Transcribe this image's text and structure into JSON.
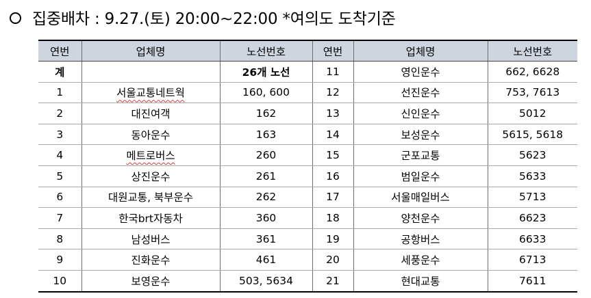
{
  "heading": "집중배차 : 9.27.(토) 20:00~22:00 *여의도 도착기준",
  "table": {
    "headers": [
      "연번",
      "업체명",
      "노선번호",
      "연번",
      "업체명",
      "노선번호"
    ],
    "total_row": {
      "label": "계",
      "company": "",
      "routes": "26개 노선"
    },
    "left": [
      {
        "no": "1",
        "company": "서울교통네트웍",
        "routes": "160, 600"
      },
      {
        "no": "2",
        "company": "대진여객",
        "routes": "162"
      },
      {
        "no": "3",
        "company": "동아운수",
        "routes": "163"
      },
      {
        "no": "4",
        "company": "메트로버스",
        "routes": "260"
      },
      {
        "no": "5",
        "company": "상진운수",
        "routes": "261"
      },
      {
        "no": "6",
        "company": "대원교통, 북부운수",
        "routes": "262"
      },
      {
        "no": "7",
        "company": "한국brt자동차",
        "routes": "360"
      },
      {
        "no": "8",
        "company": "남성버스",
        "routes": "361"
      },
      {
        "no": "9",
        "company": "진화운수",
        "routes": "461"
      },
      {
        "no": "10",
        "company": "보영운수",
        "routes": "503, 5634"
      }
    ],
    "right": [
      {
        "no": "11",
        "company": "영인운수",
        "routes": "662, 6628"
      },
      {
        "no": "12",
        "company": "선진운수",
        "routes": "753, 7613"
      },
      {
        "no": "13",
        "company": "신인운수",
        "routes": "5012"
      },
      {
        "no": "14",
        "company": "보성운수",
        "routes": "5615, 5618"
      },
      {
        "no": "15",
        "company": "군포교통",
        "routes": "5623"
      },
      {
        "no": "16",
        "company": "범일운수",
        "routes": "5633"
      },
      {
        "no": "17",
        "company": "서울매일버스",
        "routes": "5713"
      },
      {
        "no": "18",
        "company": "양천운수",
        "routes": "6623"
      },
      {
        "no": "19",
        "company": "공항버스",
        "routes": "6633"
      },
      {
        "no": "20",
        "company": "세풍운수",
        "routes": "6713"
      },
      {
        "no": "21",
        "company": "현대교통",
        "routes": "7611"
      }
    ]
  }
}
